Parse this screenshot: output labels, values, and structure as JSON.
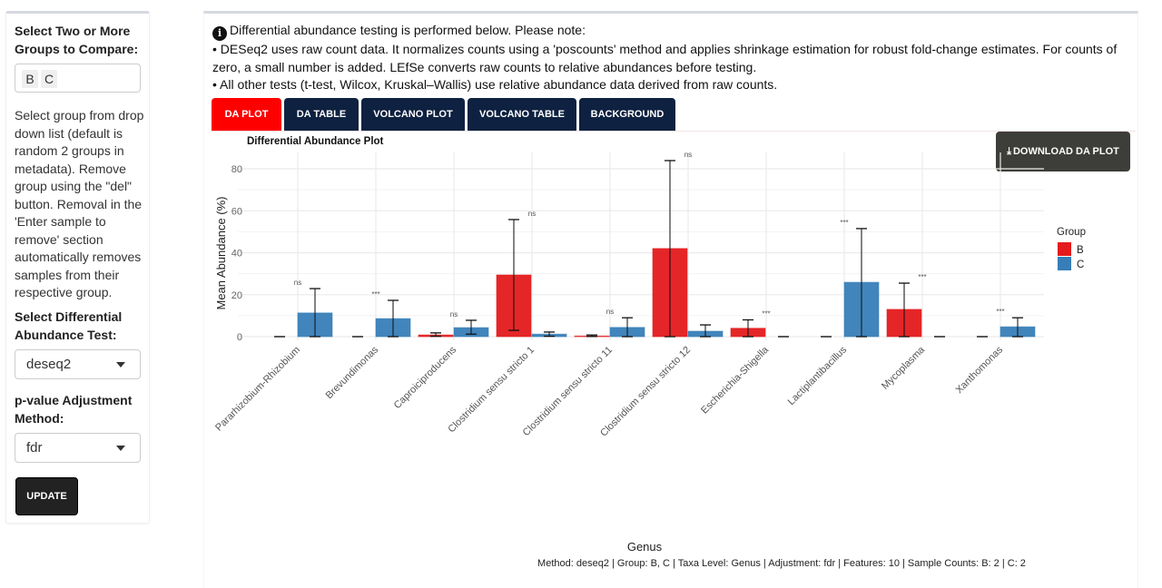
{
  "sidebar": {
    "groups_label": "Select Two or More Groups to Compare:",
    "groups_selected": [
      "B",
      "C"
    ],
    "groups_help": "Select group from drop down list (default is random 2 groups in metadata). Remove group using the \"del\" button. Removal in the 'Enter sample to remove' section automatically removes samples from their respective group.",
    "test_label": "Select Differential Abundance Test:",
    "test_value": "deseq2",
    "adjust_label": "p-value Adjustment Method:",
    "adjust_value": "fdr",
    "update_label": "UPDATE"
  },
  "main": {
    "note_title": "Differential abundance testing is performed below. Please note:",
    "note_line1": "• DESeq2 uses raw count data. It normalizes counts using a 'poscounts' method and applies shrinkage estimation for robust fold-change estimates. For counts of zero, a small number is added. LEfSe converts raw counts to relative abundances before testing.",
    "note_line2": "• All other tests (t-test, Wilcox, Kruskal–Wallis) use relative abundance data derived from raw counts.",
    "tabs": [
      {
        "label": "DA PLOT",
        "active": true
      },
      {
        "label": "DA TABLE",
        "active": false
      },
      {
        "label": "VOLCANO PLOT",
        "active": false
      },
      {
        "label": "VOLCANO TABLE",
        "active": false
      },
      {
        "label": "BACKGROUND",
        "active": false
      }
    ],
    "download_label": "DOWNLOAD DA PLOT",
    "download_icon": "download-icon",
    "info_icon": "info-circle-icon"
  },
  "chart_data": {
    "type": "bar",
    "title": "Differential Abundance Plot",
    "xlabel": "Genus",
    "ylabel": "Mean Abundance (%)",
    "ylim": [
      0,
      85
    ],
    "yticks": [
      0,
      20,
      40,
      60,
      80
    ],
    "grid": true,
    "legend": {
      "title": "Group",
      "placement": "right"
    },
    "caption": "Method: deseq2 | Group: B, C | Taxa Level: Genus | Adjustment: fdr | Features: 10 | Sample Counts: B: 2 | C: 2",
    "categories": [
      "Pararhizobium-Rhizobium",
      "Brevundimonas",
      "Caproiciproducens",
      "Clostridium sensu stricto 1",
      "Clostridium sensu stricto 11",
      "Clostridium sensu stricto 12",
      "Escherichia-Shigella",
      "Lactiplantibacillus",
      "Mycoplasma",
      "Xanthomonas"
    ],
    "significance": [
      "ns",
      "***",
      "ns",
      "ns",
      "ns",
      "ns",
      "***",
      "***",
      "***",
      "***"
    ],
    "series": [
      {
        "name": "B",
        "color": "#e41a1c",
        "values": [
          0,
          0,
          0.8,
          29.4,
          0.3,
          42.0,
          4.0,
          0,
          13.0,
          0
        ],
        "err_low": [
          0,
          0,
          0.2,
          3.0,
          0.1,
          0.0,
          0.0,
          0,
          0.0,
          0
        ],
        "err_high": [
          0,
          0,
          1.8,
          55.8,
          0.8,
          83.9,
          8.0,
          0,
          25.5,
          0
        ]
      },
      {
        "name": "C",
        "color": "#377eb8",
        "values": [
          11.3,
          8.6,
          4.3,
          1.2,
          4.4,
          2.6,
          0,
          25.9,
          0,
          4.7
        ],
        "err_low": [
          0.0,
          0.0,
          1.2,
          0.2,
          0.0,
          0.0,
          0,
          0.0,
          0,
          0.0
        ],
        "err_high": [
          22.9,
          17.3,
          7.8,
          2.2,
          9.0,
          5.6,
          0,
          51.5,
          0,
          9.0
        ]
      }
    ]
  }
}
